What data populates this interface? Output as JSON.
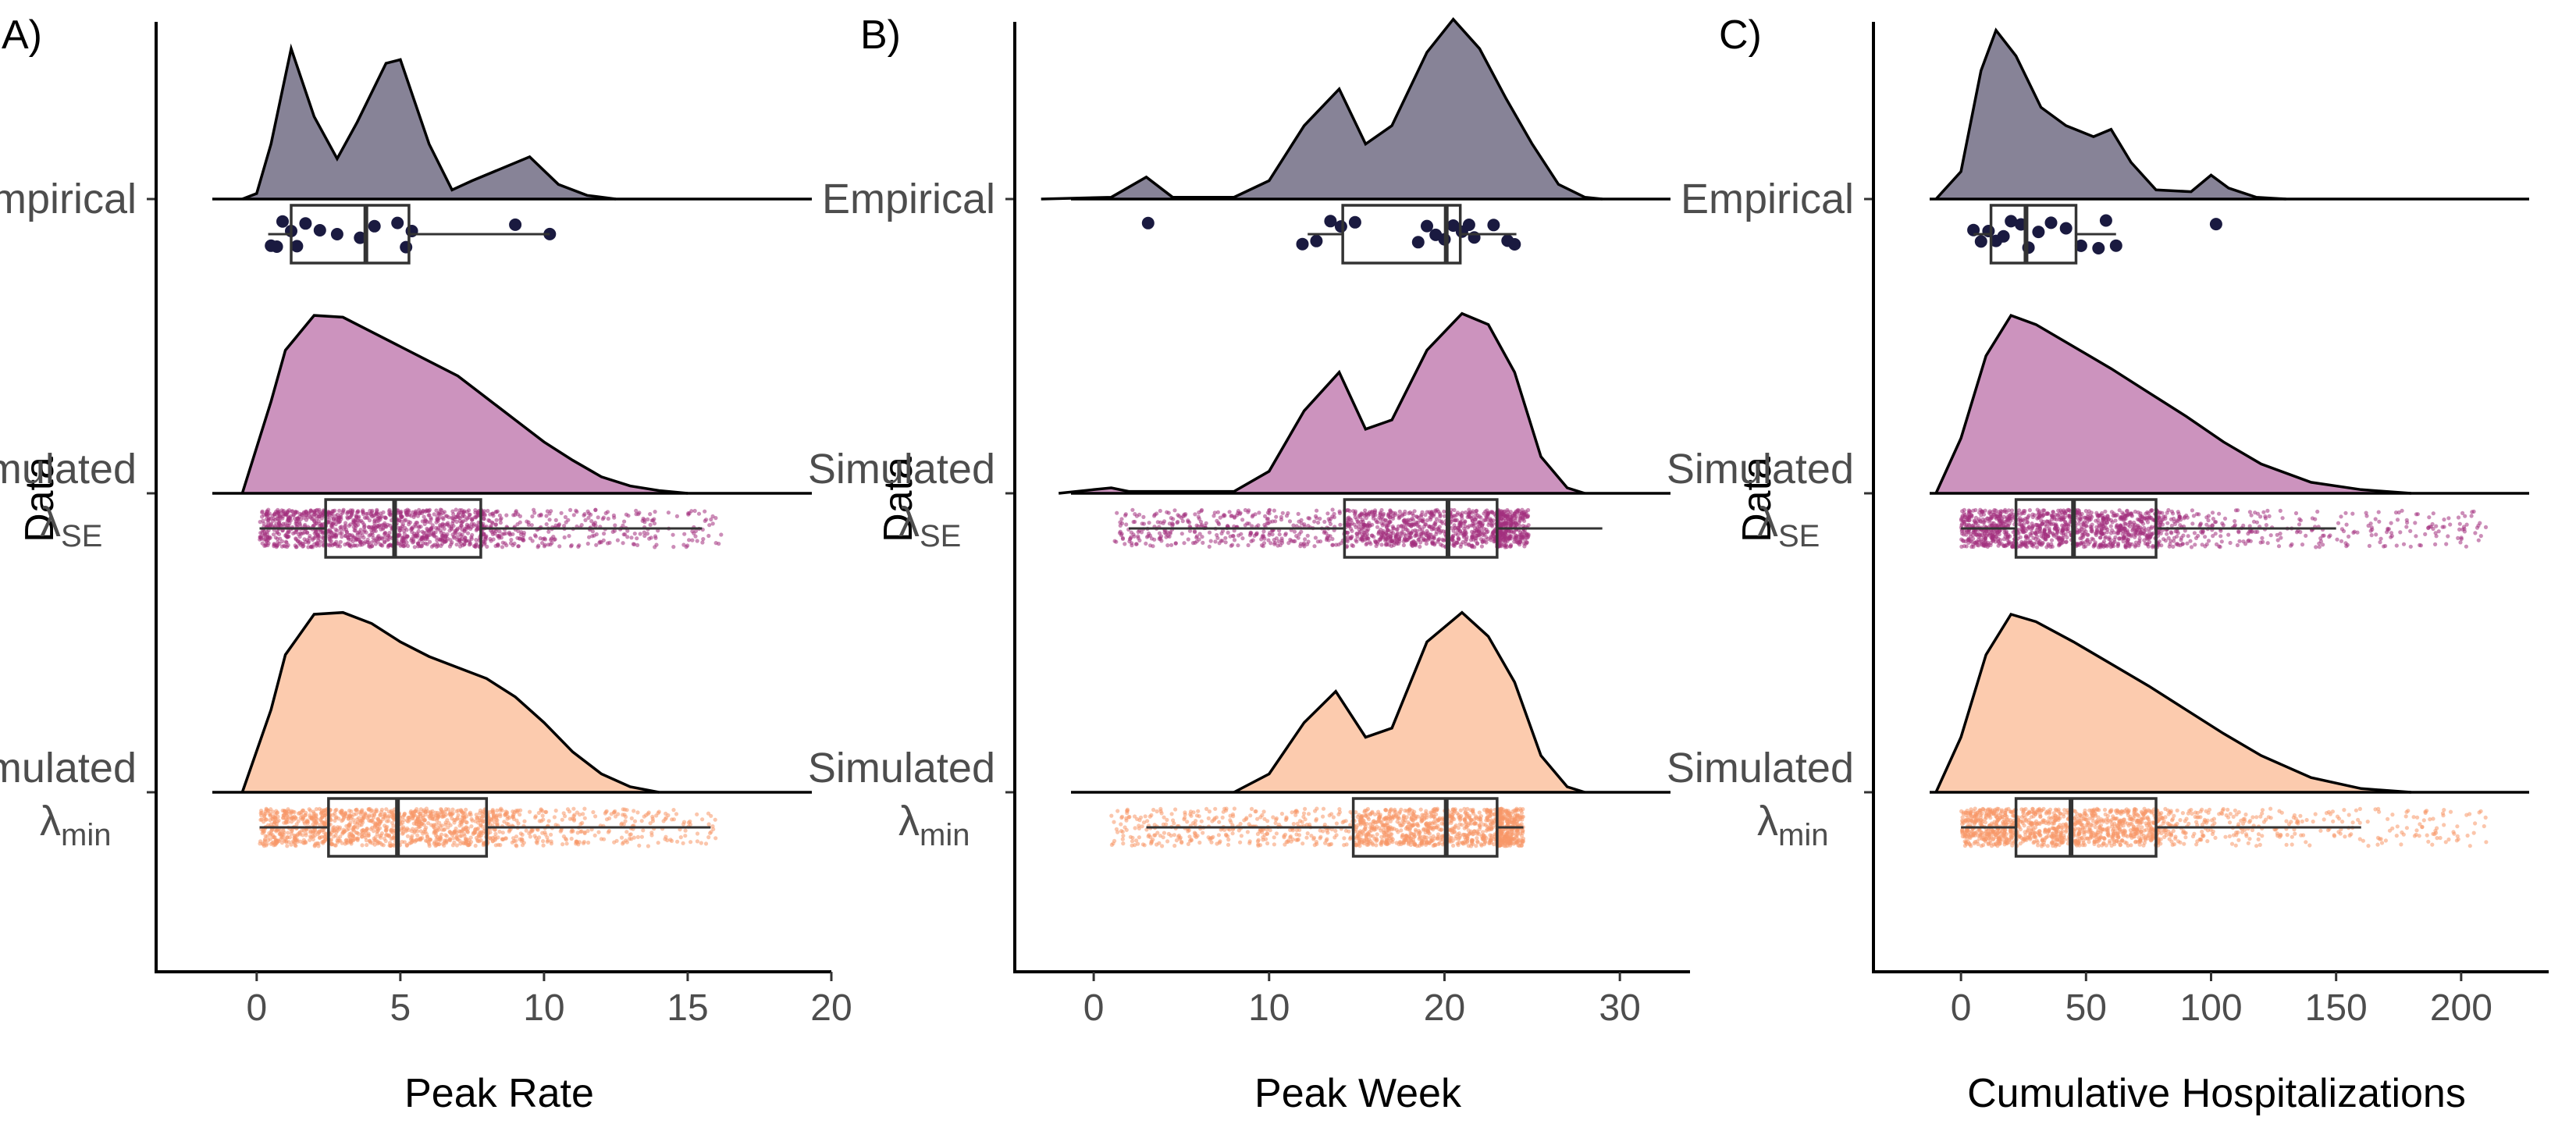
{
  "chart_data": [
    {
      "panel": "A)",
      "type": "raincloud",
      "xlabel": "Peak Rate",
      "ylabel": "Data",
      "xticks": [
        0,
        5,
        10,
        15,
        20
      ],
      "xlim": [
        -3.5,
        20
      ],
      "categories": [
        {
          "main": "Empirical",
          "sub": "",
          "color": "#878397",
          "density": [
            [
              -0.5,
              0
            ],
            [
              0,
              0.03
            ],
            [
              0.5,
              0.3
            ],
            [
              1.2,
              0.82
            ],
            [
              2,
              0.45
            ],
            [
              2.8,
              0.22
            ],
            [
              3.5,
              0.42
            ],
            [
              4.5,
              0.74
            ],
            [
              5,
              0.76
            ],
            [
              6,
              0.3
            ],
            [
              6.8,
              0.05
            ],
            [
              7.5,
              0.1
            ],
            [
              9.5,
              0.23
            ],
            [
              10.5,
              0.08
            ],
            [
              11.5,
              0.02
            ],
            [
              12.5,
              0
            ]
          ],
          "box": {
            "q1": 1.2,
            "median": 3.8,
            "q3": 5.3,
            "lo": 0.4,
            "hi": 10.2
          },
          "points": {
            "kind": "dots",
            "color": "#1a1a40",
            "values": [
              0.5,
              0.7,
              0.9,
              1.2,
              1.4,
              1.7,
              2.2,
              2.8,
              3.6,
              4.1,
              4.9,
              5.2,
              5.4,
              9.0,
              10.2
            ]
          }
        },
        {
          "main": "Simulated",
          "sub": "SE",
          "color": "#cc93be",
          "density": [
            [
              -0.5,
              0
            ],
            [
              0.5,
              0.5
            ],
            [
              1,
              0.78
            ],
            [
              2,
              0.97
            ],
            [
              3,
              0.96
            ],
            [
              4,
              0.88
            ],
            [
              5,
              0.8
            ],
            [
              6,
              0.72
            ],
            [
              7,
              0.64
            ],
            [
              8,
              0.52
            ],
            [
              9,
              0.4
            ],
            [
              10,
              0.28
            ],
            [
              11,
              0.18
            ],
            [
              12,
              0.09
            ],
            [
              13,
              0.04
            ],
            [
              14,
              0.015
            ],
            [
              15,
              0
            ]
          ],
          "box": {
            "q1": 2.4,
            "median": 4.8,
            "q3": 7.8,
            "lo": 0.1,
            "hi": 15.5
          },
          "points": {
            "kind": "cloud",
            "color": "#a3307e",
            "values": [
              0.1,
              16.3
            ]
          }
        },
        {
          "main": "Simulated",
          "sub": "min",
          "color": "#fccbae",
          "density": [
            [
              -0.5,
              0
            ],
            [
              0.5,
              0.45
            ],
            [
              1,
              0.75
            ],
            [
              2,
              0.97
            ],
            [
              3,
              0.98
            ],
            [
              4,
              0.92
            ],
            [
              5,
              0.82
            ],
            [
              6,
              0.74
            ],
            [
              7,
              0.68
            ],
            [
              8,
              0.62
            ],
            [
              9,
              0.52
            ],
            [
              10,
              0.38
            ],
            [
              11,
              0.22
            ],
            [
              12,
              0.1
            ],
            [
              13,
              0.03
            ],
            [
              14,
              0
            ]
          ],
          "box": {
            "q1": 2.5,
            "median": 4.9,
            "q3": 8.0,
            "lo": 0.1,
            "hi": 15.8
          },
          "points": {
            "kind": "cloud",
            "color": "#f89868",
            "values": [
              0.1,
              16.0
            ]
          }
        }
      ]
    },
    {
      "panel": "B)",
      "type": "raincloud",
      "xlabel": "Peak Week",
      "ylabel": "Data",
      "xticks": [
        0,
        10,
        20,
        30
      ],
      "xlim": [
        -4.5,
        34
      ],
      "categories": [
        {
          "main": "Empirical",
          "sub": "",
          "color": "#878397",
          "density": [
            [
              -3,
              0
            ],
            [
              1,
              0.01
            ],
            [
              3,
              0.12
            ],
            [
              4.5,
              0.01
            ],
            [
              8,
              0.01
            ],
            [
              10,
              0.1
            ],
            [
              12,
              0.4
            ],
            [
              14,
              0.6
            ],
            [
              15.5,
              0.3
            ],
            [
              17,
              0.4
            ],
            [
              19,
              0.8
            ],
            [
              20.5,
              0.98
            ],
            [
              22,
              0.82
            ],
            [
              23.5,
              0.55
            ],
            [
              25,
              0.3
            ],
            [
              26.5,
              0.08
            ],
            [
              28,
              0.01
            ],
            [
              29,
              0
            ]
          ],
          "box": {
            "q1": 14.2,
            "median": 20.1,
            "q3": 20.9,
            "lo": 12.2,
            "hi": 24.1
          },
          "points": {
            "kind": "dots",
            "color": "#1a1a40",
            "values": [
              3.1,
              11.9,
              12.7,
              13.5,
              14.1,
              14.9,
              18.5,
              19.0,
              19.5,
              20.0,
              20.5,
              21.0,
              21.4,
              21.7,
              22.8,
              23.6,
              24.0
            ]
          }
        },
        {
          "main": "Simulated",
          "sub": "SE",
          "color": "#cc93be",
          "density": [
            [
              -2,
              0
            ],
            [
              0,
              0.02
            ],
            [
              1,
              0.03
            ],
            [
              2,
              0.01
            ],
            [
              8,
              0.01
            ],
            [
              10,
              0.12
            ],
            [
              12,
              0.45
            ],
            [
              14,
              0.66
            ],
            [
              15.5,
              0.35
            ],
            [
              17,
              0.4
            ],
            [
              19,
              0.78
            ],
            [
              21,
              0.98
            ],
            [
              22.5,
              0.92
            ],
            [
              24,
              0.66
            ],
            [
              25.5,
              0.2
            ],
            [
              27,
              0.03
            ],
            [
              28,
              0
            ]
          ],
          "box": {
            "q1": 14.3,
            "median": 20.2,
            "q3": 23.0,
            "lo": 2.0,
            "hi": 29.0
          },
          "points": {
            "kind": "cloud",
            "color": "#a3307e",
            "values": [
              1.0,
              24.8
            ]
          }
        },
        {
          "main": "Simulated",
          "sub": "min",
          "color": "#fccbae",
          "density": [
            [
              8,
              0
            ],
            [
              10,
              0.1
            ],
            [
              12,
              0.38
            ],
            [
              13.8,
              0.55
            ],
            [
              15.5,
              0.3
            ],
            [
              17,
              0.35
            ],
            [
              19,
              0.82
            ],
            [
              21,
              0.98
            ],
            [
              22.5,
              0.85
            ],
            [
              24,
              0.6
            ],
            [
              25.5,
              0.2
            ],
            [
              27,
              0.03
            ],
            [
              28,
              0
            ]
          ],
          "box": {
            "q1": 14.8,
            "median": 20.1,
            "q3": 23.0,
            "lo": 3.0,
            "hi": 24.5
          },
          "points": {
            "kind": "cloud",
            "color": "#f89868",
            "values": [
              1.0,
              24.5
            ]
          }
        }
      ]
    },
    {
      "panel": "C)",
      "type": "raincloud",
      "xlabel": "Cumulative Hospitalizations",
      "ylabel": "Data",
      "xticks": [
        0,
        50,
        100,
        150,
        200
      ],
      "xlim": [
        -35,
        235
      ],
      "categories": [
        {
          "main": "Empirical",
          "sub": "",
          "color": "#878397",
          "density": [
            [
              -10,
              0
            ],
            [
              0,
              0.15
            ],
            [
              8,
              0.7
            ],
            [
              14,
              0.92
            ],
            [
              22,
              0.78
            ],
            [
              32,
              0.5
            ],
            [
              42,
              0.4
            ],
            [
              53,
              0.34
            ],
            [
              60,
              0.38
            ],
            [
              68,
              0.2
            ],
            [
              78,
              0.05
            ],
            [
              92,
              0.04
            ],
            [
              100,
              0.13
            ],
            [
              107,
              0.06
            ],
            [
              118,
              0.01
            ],
            [
              130,
              0
            ]
          ],
          "box": {
            "q1": 12,
            "median": 26,
            "q3": 46,
            "lo": 5,
            "hi": 62
          },
          "points": {
            "kind": "dots",
            "color": "#1a1a40",
            "values": [
              5,
              8,
              11,
              14,
              17,
              20,
              24,
              27,
              31,
              36,
              42,
              48,
              55,
              58,
              62,
              102
            ]
          }
        },
        {
          "main": "Simulated",
          "sub": "SE",
          "color": "#cc93be",
          "density": [
            [
              -10,
              0
            ],
            [
              0,
              0.3
            ],
            [
              10,
              0.75
            ],
            [
              20,
              0.97
            ],
            [
              30,
              0.92
            ],
            [
              45,
              0.8
            ],
            [
              60,
              0.68
            ],
            [
              75,
              0.55
            ],
            [
              90,
              0.42
            ],
            [
              105,
              0.28
            ],
            [
              120,
              0.16
            ],
            [
              140,
              0.06
            ],
            [
              160,
              0.02
            ],
            [
              180,
              0
            ]
          ],
          "box": {
            "q1": 22,
            "median": 45,
            "q3": 78,
            "lo": 0,
            "hi": 150
          },
          "points": {
            "kind": "cloud",
            "color": "#a3307e",
            "values": [
              0,
              210
            ]
          }
        },
        {
          "main": "Simulated",
          "sub": "min",
          "color": "#fccbae",
          "density": [
            [
              -10,
              0
            ],
            [
              0,
              0.3
            ],
            [
              10,
              0.75
            ],
            [
              20,
              0.97
            ],
            [
              30,
              0.93
            ],
            [
              45,
              0.82
            ],
            [
              60,
              0.7
            ],
            [
              75,
              0.58
            ],
            [
              90,
              0.45
            ],
            [
              105,
              0.32
            ],
            [
              120,
              0.2
            ],
            [
              140,
              0.08
            ],
            [
              160,
              0.02
            ],
            [
              180,
              0
            ]
          ],
          "box": {
            "q1": 22,
            "median": 44,
            "q3": 78,
            "lo": 0,
            "hi": 160
          },
          "points": {
            "kind": "cloud",
            "color": "#f89868",
            "values": [
              0,
              210
            ]
          }
        }
      ]
    }
  ]
}
